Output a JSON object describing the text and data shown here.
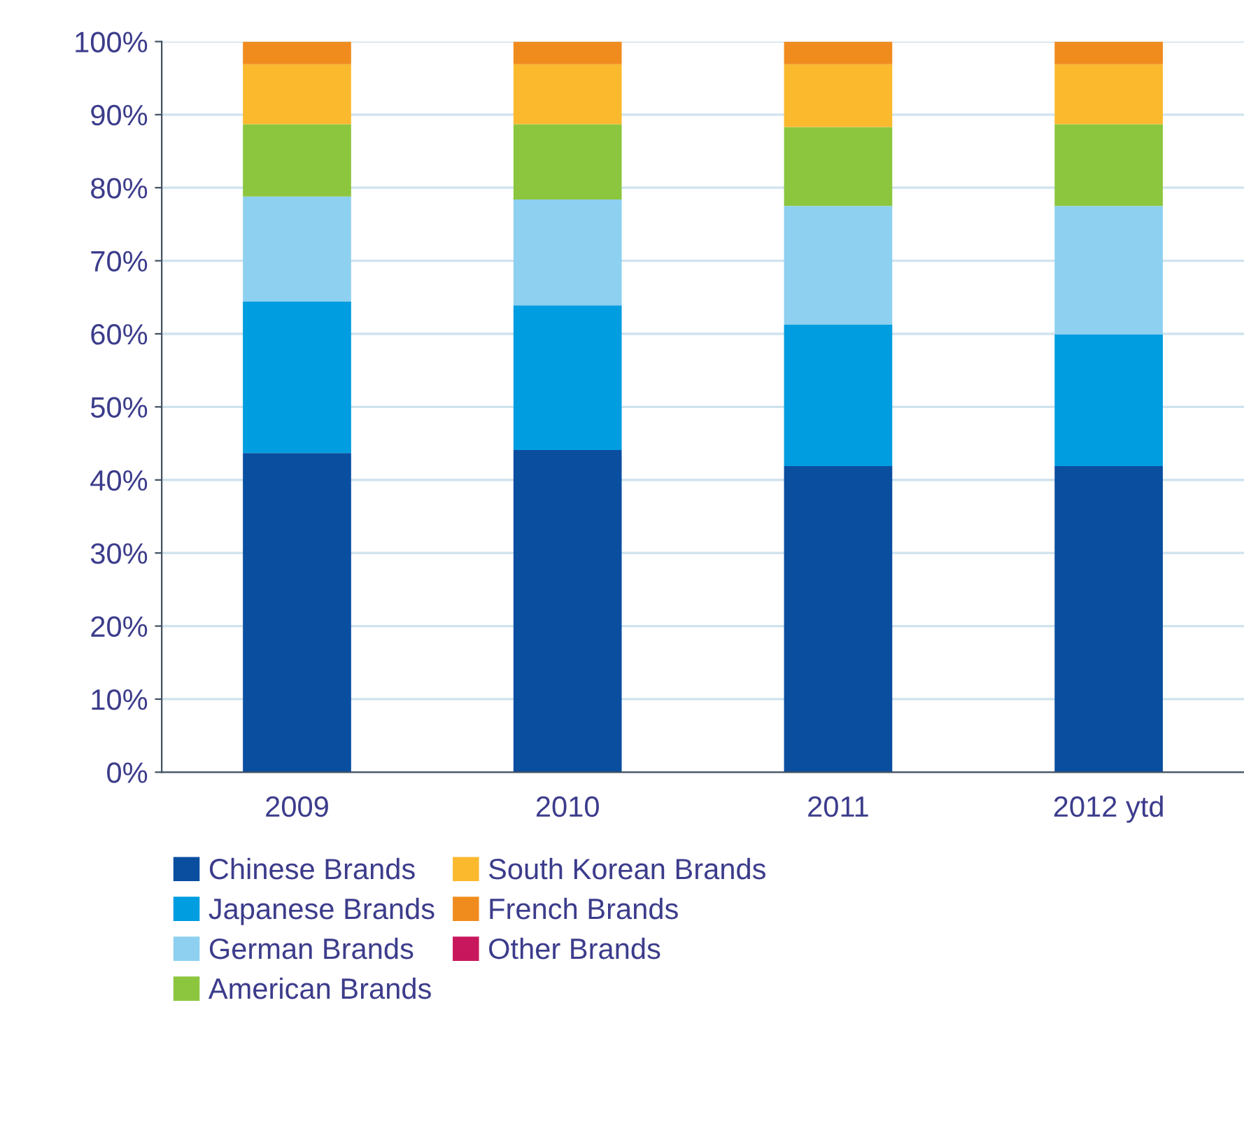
{
  "chart_data": {
    "type": "bar",
    "stacked": true,
    "categories": [
      "2009",
      "2010",
      "2011",
      "2012 ytd"
    ],
    "series": [
      {
        "name": "Chinese Brands",
        "color": "#0a4ea0",
        "values": [
          43.7,
          44.1,
          41.9,
          41.9
        ]
      },
      {
        "name": "Japanese Brands",
        "color": "#009de0",
        "values": [
          20.7,
          19.8,
          19.4,
          18.0
        ]
      },
      {
        "name": "German Brands",
        "color": "#8ed0f0",
        "values": [
          14.4,
          14.5,
          16.2,
          17.6
        ]
      },
      {
        "name": "American Brands",
        "color": "#8cc63f",
        "values": [
          9.9,
          10.3,
          10.8,
          11.2
        ]
      },
      {
        "name": "South Korean Brands",
        "color": "#fbb92e",
        "values": [
          8.2,
          8.2,
          8.6,
          8.2
        ]
      },
      {
        "name": "French Brands",
        "color": "#f08c1e",
        "values": [
          3.1,
          3.1,
          3.1,
          3.1
        ]
      },
      {
        "name": "Other Brands",
        "color": "#c8175d",
        "values": [
          0,
          0,
          0,
          0
        ]
      }
    ],
    "ylim": [
      0,
      100
    ],
    "yticks": [
      {
        "value": 0,
        "label": "0%"
      },
      {
        "value": 10,
        "label": "10%"
      },
      {
        "value": 20,
        "label": "20%"
      },
      {
        "value": 30,
        "label": "30%"
      },
      {
        "value": 40,
        "label": "40%"
      },
      {
        "value": 50,
        "label": "50%"
      },
      {
        "value": 60,
        "label": "60%"
      },
      {
        "value": 70,
        "label": "70%"
      },
      {
        "value": 80,
        "label": "80%"
      },
      {
        "value": 90,
        "label": "90%"
      },
      {
        "value": 100,
        "label": "100%"
      }
    ],
    "grid": "y",
    "legend": "bottom"
  }
}
